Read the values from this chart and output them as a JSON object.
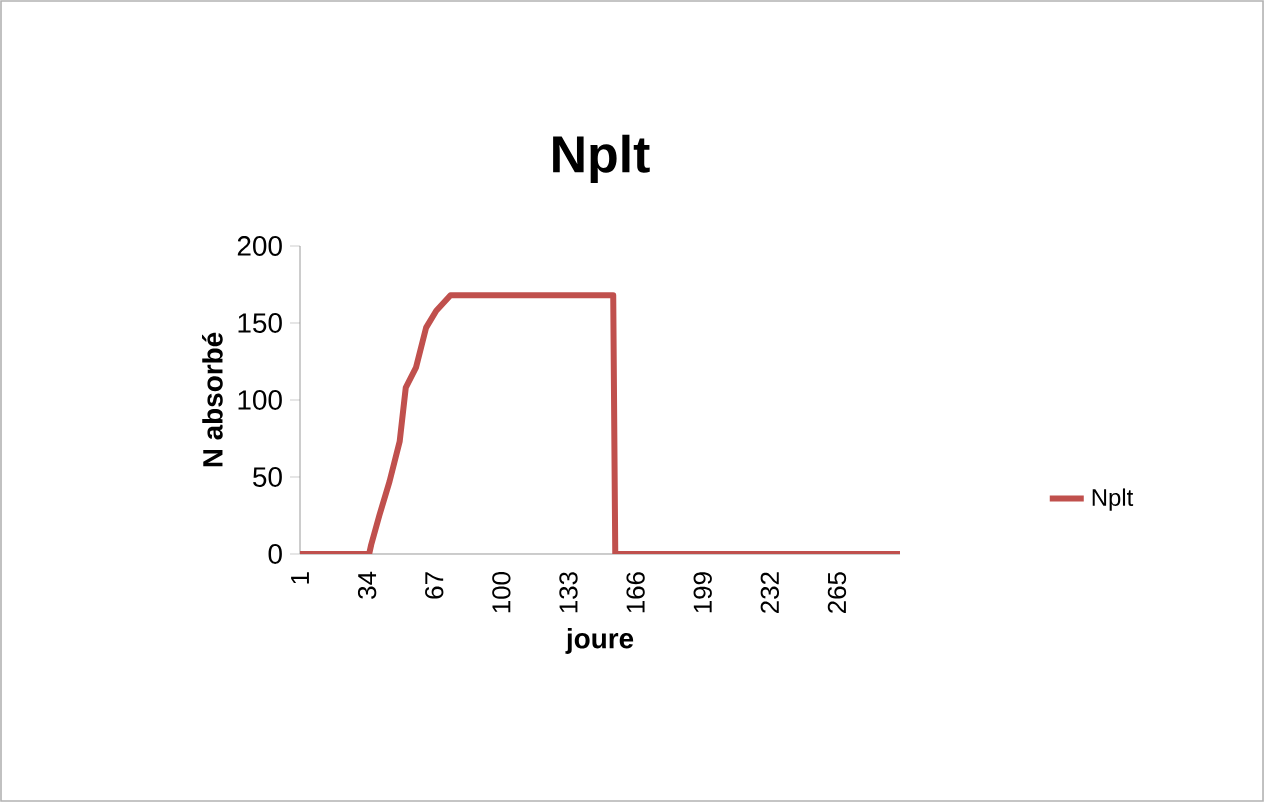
{
  "chart_data": {
    "type": "line",
    "title": "Nplt",
    "xlabel": "joure",
    "ylabel": "N absorbé",
    "series": [
      {
        "name": "Nplt",
        "color": "#c0504d",
        "x": [
          1,
          35,
          36,
          40,
          45,
          50,
          53,
          58,
          63,
          68,
          75,
          155,
          156,
          296
        ],
        "values": [
          0,
          0,
          6,
          25,
          47,
          73,
          108,
          121,
          147,
          158,
          168,
          168,
          0,
          0
        ]
      }
    ],
    "xlim": [
      1,
      296
    ],
    "xticks": [
      1,
      34,
      67,
      100,
      133,
      166,
      199,
      232,
      265
    ],
    "ylim": [
      0,
      200
    ],
    "yticks": [
      0,
      50,
      100,
      150,
      200
    ],
    "legend": "right",
    "marker": "none",
    "line_style": "solid",
    "grid": false
  }
}
